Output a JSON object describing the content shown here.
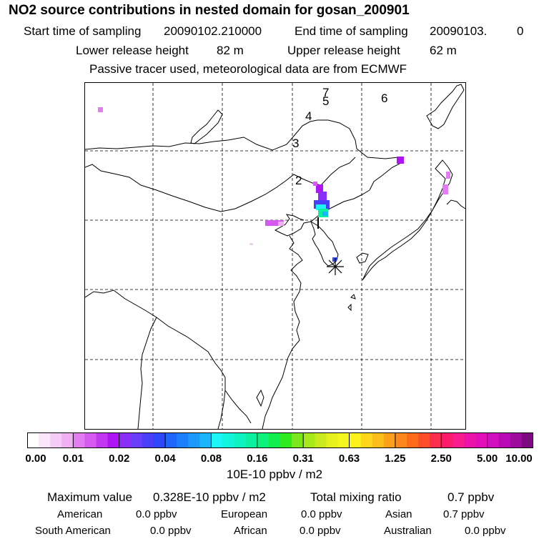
{
  "header": {
    "title": "NO2 source contributions in nested domain for gosan_200901",
    "start_label": "Start time of sampling",
    "start_value": "20090102.210000",
    "end_label": "End time of sampling",
    "end_value": "20090103.",
    "end_tail": "0",
    "lower_label": "Lower release height",
    "lower_value": "82 m",
    "upper_label": "Upper release height",
    "upper_value": "62 m",
    "tracer_note": "Passive tracer used, meteorological data are from ECMWF"
  },
  "map": {
    "trajectory_labels": [
      "2",
      "3",
      "4",
      "5",
      "6",
      "7"
    ],
    "receptor_marker": "gosan-receptor-star"
  },
  "colorbar": {
    "tick_labels": [
      "0.00",
      "0.01",
      "0.02",
      "0.04",
      "0.08",
      "0.16",
      "0.31",
      "0.63",
      "1.25",
      "2.50",
      "5.00",
      "10.00"
    ],
    "units": "10E-10 ppbv / m2",
    "colors": [
      "#ffffff",
      "#fbe6fb",
      "#f5ccf6",
      "#f0b1f3",
      "#e37cf0",
      "#d55af0",
      "#c238f2",
      "#ae14f4",
      "#8a2ff7",
      "#6a3ef9",
      "#4a3ff9",
      "#2f47fb",
      "#1f66fc",
      "#1c80fb",
      "#1c9afb",
      "#1cb4fb",
      "#1cf5f5",
      "#12f4dc",
      "#0ef3c0",
      "#0cf19f",
      "#0cf27a",
      "#12ee4e",
      "#30ea20",
      "#7be81c",
      "#a6e81c",
      "#c9ea1c",
      "#e6f01c",
      "#f5f61c",
      "#fff21c",
      "#fdd61c",
      "#fcbd1c",
      "#fca01c",
      "#fd871c",
      "#fd6a1c",
      "#fd4e2a",
      "#fc2e4e",
      "#fc1c6e",
      "#f81c8c",
      "#ec14a8",
      "#e310b8",
      "#d010c0",
      "#b80ab4",
      "#9e0a9e",
      "#7e0a82"
    ]
  },
  "summary": {
    "max_label": "Maximum value",
    "max_value": "0.328E-10 ppbv / m2",
    "total_label": "Total mixing ratio",
    "total_value": "0.7 ppbv",
    "regions": [
      {
        "name": "American",
        "value": "0.0 ppbv"
      },
      {
        "name": "European",
        "value": "0.0 ppbv"
      },
      {
        "name": "Asian",
        "value": "0.7 ppbv"
      },
      {
        "name": "South American",
        "value": "0.0 ppbv"
      },
      {
        "name": "African",
        "value": "0.0 ppbv"
      },
      {
        "name": "Australian",
        "value": "0.0 ppbv"
      }
    ]
  }
}
